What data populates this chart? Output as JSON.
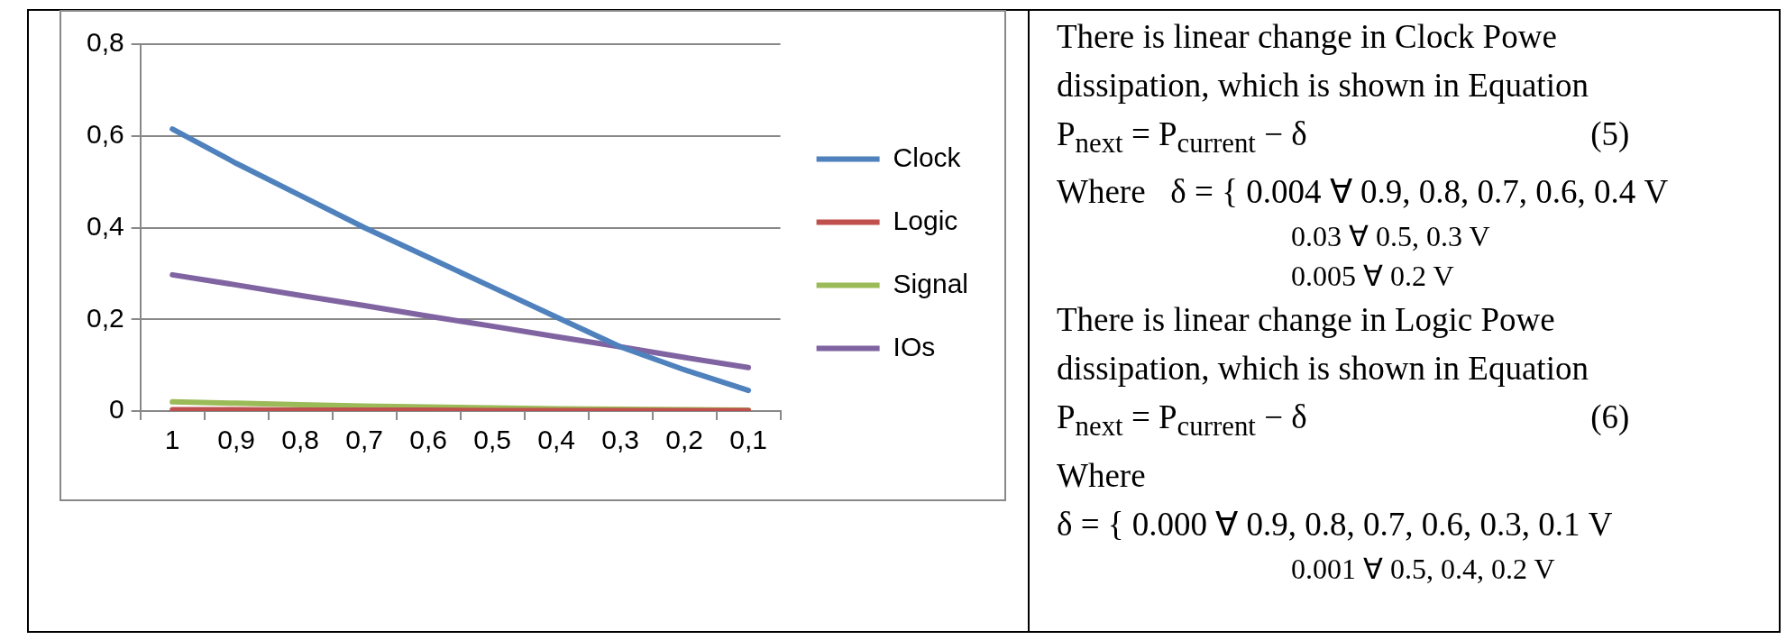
{
  "chart_data": {
    "type": "line",
    "categories": [
      "1",
      "0,9",
      "0,8",
      "0,7",
      "0,6",
      "0,5",
      "0,4",
      "0,3",
      "0,2",
      "0,1"
    ],
    "series": [
      {
        "name": "Clock",
        "color": "#4f81bd",
        "values": [
          0.615,
          0.54,
          0.47,
          0.4,
          0.335,
          0.27,
          0.205,
          0.14,
          0.09,
          0.045
        ]
      },
      {
        "name": "Logic",
        "color": "#c0504d",
        "values": [
          0.003,
          0.003,
          0.002,
          0.002,
          0.002,
          0.001,
          0.001,
          0.001,
          0.001,
          0.001
        ]
      },
      {
        "name": "Signal",
        "color": "#9bbb59",
        "values": [
          0.02,
          0.017,
          0.014,
          0.011,
          0.009,
          0.007,
          0.005,
          0.004,
          0.003,
          0.002
        ]
      },
      {
        "name": "IOs",
        "color": "#8064a2",
        "values": [
          0.297,
          0.275,
          0.252,
          0.23,
          0.207,
          0.185,
          0.162,
          0.14,
          0.117,
          0.095
        ]
      }
    ],
    "ylim": [
      0,
      0.8
    ],
    "yticks": [
      0,
      {
        "value": 0.2,
        "label": "0,2"
      },
      {
        "value": 0.4,
        "label": "0,4"
      },
      {
        "value": 0.6,
        "label": "0,6"
      },
      {
        "value": 0.8,
        "label": "0,8"
      }
    ],
    "grid": "y",
    "legend": "right",
    "marker": "none",
    "line_style": "solid",
    "annotations": [
      "There is linear change in Clock Powe",
      "dissipation, which is shown in Equation",
      "P$_{next}$ = P$_{current}$ − δ                                  (5)",
      "Where   δ = { 0.004 ∀ 0.9, 0.8, 0.7, 0.6, 0.4 V",
      "0.03 ∀ 0.5, 0.3 V",
      "0.005 ∀ 0.2 V",
      "There is linear change in Logic Powe",
      "dissipation, which is shown in Equation",
      "P$_{next}$ = P$_{current}$ − δ                                  (6)",
      "Where",
      "δ = { 0.000 ∀ 0.9, 0.8, 0.7, 0.6, 0.3, 0.1 V",
      "0.001 ∀ 0.5, 0.4, 0.2 V"
    ]
  }
}
